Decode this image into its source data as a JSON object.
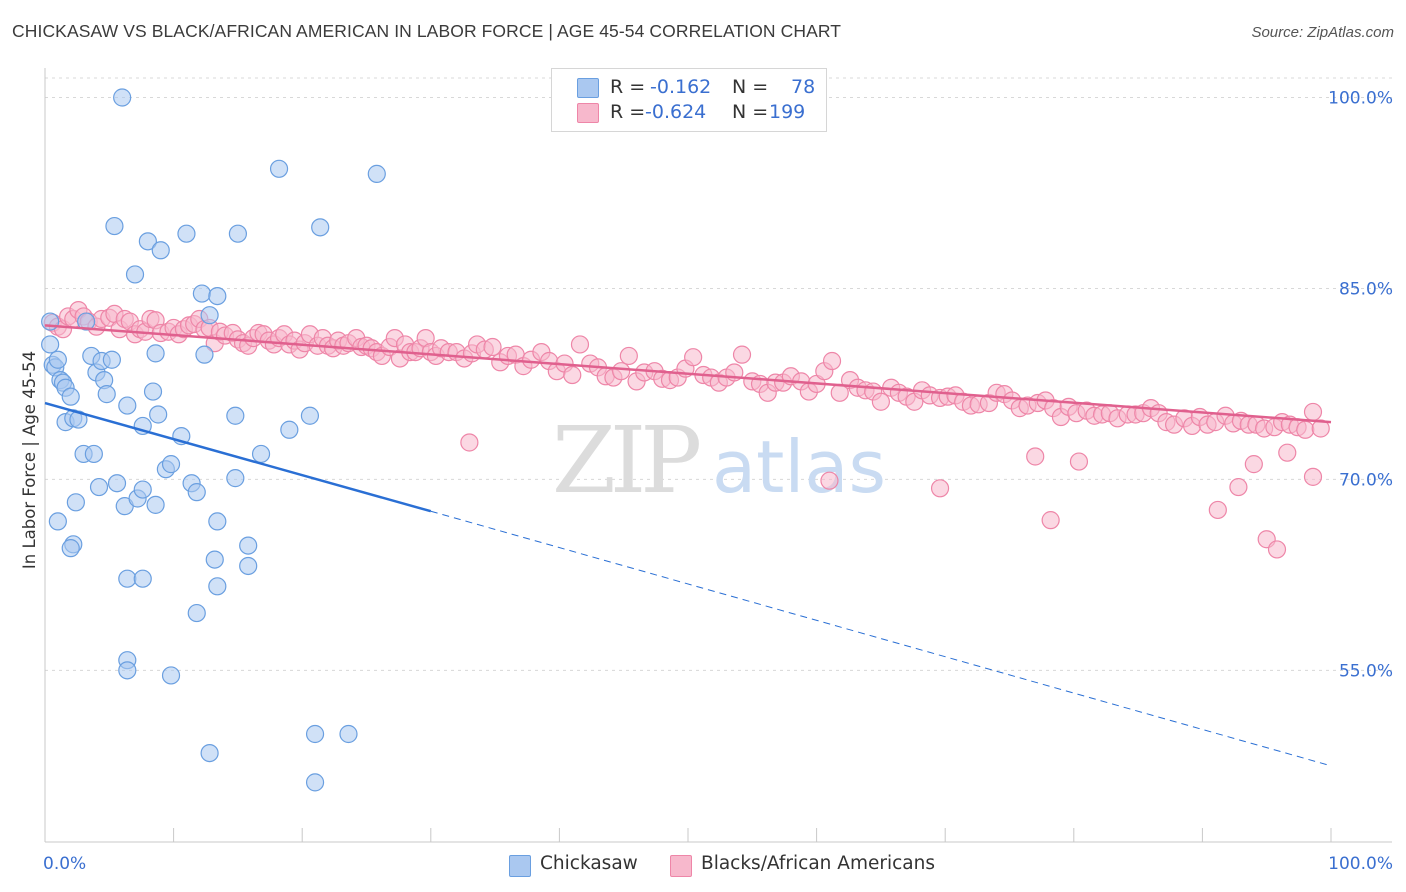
{
  "title": "CHICKASAW VS BLACK/AFRICAN AMERICAN IN LABOR FORCE | AGE 45-54 CORRELATION CHART",
  "source": "Source: ZipAtlas.com",
  "watermark": {
    "zip": "ZIP",
    "atlas": "atlas"
  },
  "legend_top": [
    {
      "r_label": "R =",
      "r_value": "-0.162",
      "n_label": "N =",
      "n_value": "78"
    },
    {
      "r_label": "R =",
      "r_value": "-0.624",
      "n_label": "N =",
      "n_value": "199"
    }
  ],
  "colors": {
    "blue_fill": "#aac8f0",
    "blue_stroke": "#6a9fe0",
    "blue_line": "#2a6fd4",
    "pink_fill": "#f7b8cc",
    "pink_stroke": "#ee86a8",
    "pink_line": "#e0608e",
    "value_text": "#3a6fd0",
    "grid": "#d8d8d8"
  },
  "chart_data": {
    "type": "scatter",
    "title": "CHICKASAW VS BLACK/AFRICAN AMERICAN IN LABOR FORCE | AGE 45-54 CORRELATION CHART",
    "xlabel": "",
    "ylabel": "In Labor Force | Age 45-54",
    "xlim": [
      0,
      100
    ],
    "ylim": [
      43,
      101
    ],
    "x_tick_labels": [
      "0.0%",
      "100.0%"
    ],
    "y_tick_labels": [
      "100.0%",
      "85.0%",
      "70.0%",
      "55.0%"
    ],
    "y_ticks": [
      100,
      85,
      70,
      55
    ],
    "grid": true,
    "legend_position": "top-center",
    "series": [
      {
        "name": "Chickasaw",
        "color": "blue",
        "r": -0.162,
        "n": 78,
        "trend": {
          "x": [
            0,
            30
          ],
          "y": [
            76.0,
            67.5
          ],
          "dashed_to": [
            100,
            47.5
          ]
        },
        "points": [
          [
            0.4,
            82.4
          ],
          [
            0.4,
            80.6
          ],
          [
            0.6,
            79.0
          ],
          [
            0.8,
            78.8
          ],
          [
            1.0,
            79.4
          ],
          [
            1.2,
            77.8
          ],
          [
            1.4,
            77.6
          ],
          [
            1.6,
            77.2
          ],
          [
            2.0,
            76.5
          ],
          [
            1.6,
            74.5
          ],
          [
            2.2,
            74.8
          ],
          [
            2.6,
            74.7
          ],
          [
            3.2,
            82.4
          ],
          [
            3.6,
            79.7
          ],
          [
            4.0,
            78.4
          ],
          [
            4.4,
            79.3
          ],
          [
            5.2,
            79.4
          ],
          [
            4.6,
            77.8
          ],
          [
            4.8,
            76.7
          ],
          [
            6.4,
            75.8
          ],
          [
            8.4,
            76.9
          ],
          [
            7.6,
            74.2
          ],
          [
            8.8,
            75.1
          ],
          [
            3.0,
            72.0
          ],
          [
            3.8,
            72.0
          ],
          [
            2.4,
            68.2
          ],
          [
            1.0,
            66.7
          ],
          [
            2.2,
            64.9
          ],
          [
            2.0,
            64.6
          ],
          [
            4.2,
            69.4
          ],
          [
            5.6,
            69.7
          ],
          [
            6.2,
            67.9
          ],
          [
            7.2,
            68.5
          ],
          [
            7.6,
            69.2
          ],
          [
            8.6,
            68.0
          ],
          [
            9.4,
            70.8
          ],
          [
            9.8,
            71.2
          ],
          [
            10.6,
            73.4
          ],
          [
            11.4,
            69.7
          ],
          [
            11.8,
            69.0
          ],
          [
            12.4,
            79.8
          ],
          [
            12.2,
            84.6
          ],
          [
            12.8,
            82.9
          ],
          [
            13.4,
            84.4
          ],
          [
            8.6,
            79.9
          ],
          [
            5.4,
            89.9
          ],
          [
            6.0,
            100.0
          ],
          [
            7.0,
            86.1
          ],
          [
            8.0,
            88.7
          ],
          [
            9.0,
            88.0
          ],
          [
            11.0,
            89.3
          ],
          [
            15.0,
            89.3
          ],
          [
            18.2,
            94.4
          ],
          [
            21.4,
            89.8
          ],
          [
            25.8,
            94.0
          ],
          [
            14.8,
            75.0
          ],
          [
            19.0,
            73.9
          ],
          [
            20.6,
            75.0
          ],
          [
            16.8,
            72.0
          ],
          [
            14.8,
            70.1
          ],
          [
            13.4,
            66.7
          ],
          [
            13.2,
            63.7
          ],
          [
            13.4,
            61.6
          ],
          [
            15.8,
            64.8
          ],
          [
            15.8,
            63.2
          ],
          [
            11.8,
            59.5
          ],
          [
            6.4,
            62.2
          ],
          [
            7.6,
            62.2
          ],
          [
            6.4,
            55.8
          ],
          [
            6.4,
            55.0
          ],
          [
            9.8,
            54.6
          ],
          [
            12.8,
            48.5
          ],
          [
            21.0,
            50.0
          ],
          [
            23.6,
            50.0
          ],
          [
            21.0,
            46.2
          ]
        ]
      },
      {
        "name": "Blacks/African Americans",
        "color": "pink",
        "r": -0.624,
        "n": 199,
        "trend": {
          "x": [
            0,
            100
          ],
          "y": [
            82.1,
            74.5
          ]
        },
        "points": [
          [
            0.6,
            82.3
          ],
          [
            1.0,
            82.0
          ],
          [
            1.4,
            81.8
          ],
          [
            1.8,
            82.8
          ],
          [
            2.2,
            82.6
          ],
          [
            2.6,
            83.3
          ],
          [
            3.0,
            82.8
          ],
          [
            3.4,
            82.4
          ],
          [
            4.0,
            82.0
          ],
          [
            4.4,
            82.6
          ],
          [
            5.0,
            82.7
          ],
          [
            5.4,
            83.0
          ],
          [
            5.8,
            81.8
          ],
          [
            6.2,
            82.6
          ],
          [
            6.6,
            82.4
          ],
          [
            7.0,
            81.4
          ],
          [
            7.4,
            81.8
          ],
          [
            7.8,
            81.6
          ],
          [
            8.2,
            82.6
          ],
          [
            8.6,
            82.5
          ],
          [
            9.0,
            81.5
          ],
          [
            9.6,
            81.6
          ],
          [
            10.0,
            81.9
          ],
          [
            10.4,
            81.4
          ],
          [
            10.8,
            81.8
          ],
          [
            11.2,
            82.1
          ],
          [
            11.6,
            82.2
          ],
          [
            12.0,
            82.6
          ],
          [
            12.4,
            81.8
          ],
          [
            12.8,
            81.9
          ],
          [
            13.2,
            80.7
          ],
          [
            13.6,
            81.6
          ],
          [
            14.0,
            81.3
          ],
          [
            14.6,
            81.5
          ],
          [
            15.0,
            81.0
          ],
          [
            15.4,
            80.7
          ],
          [
            15.8,
            80.5
          ],
          [
            16.2,
            81.1
          ],
          [
            16.6,
            81.5
          ],
          [
            17.0,
            81.4
          ],
          [
            17.4,
            80.9
          ],
          [
            17.8,
            80.6
          ],
          [
            18.2,
            81.1
          ],
          [
            18.6,
            81.4
          ],
          [
            19.0,
            80.6
          ],
          [
            19.4,
            80.9
          ],
          [
            19.8,
            80.2
          ],
          [
            20.2,
            80.7
          ],
          [
            20.6,
            81.4
          ],
          [
            21.2,
            80.5
          ],
          [
            21.6,
            81.1
          ],
          [
            22.0,
            80.5
          ],
          [
            22.4,
            80.3
          ],
          [
            22.8,
            80.9
          ],
          [
            23.2,
            80.5
          ],
          [
            23.6,
            80.7
          ],
          [
            24.2,
            81.1
          ],
          [
            24.6,
            80.4
          ],
          [
            25.0,
            80.5
          ],
          [
            25.4,
            80.3
          ],
          [
            25.8,
            80.0
          ],
          [
            26.2,
            79.7
          ],
          [
            26.8,
            80.4
          ],
          [
            27.2,
            81.1
          ],
          [
            27.6,
            79.5
          ],
          [
            28.0,
            80.6
          ],
          [
            28.4,
            80.0
          ],
          [
            28.8,
            80.0
          ],
          [
            29.2,
            80.3
          ],
          [
            29.6,
            81.1
          ],
          [
            30.0,
            80.0
          ],
          [
            30.4,
            79.7
          ],
          [
            30.8,
            80.3
          ],
          [
            31.4,
            80.0
          ],
          [
            32.0,
            80.0
          ],
          [
            32.6,
            79.5
          ],
          [
            33.2,
            79.9
          ],
          [
            33.6,
            80.6
          ],
          [
            34.2,
            80.2
          ],
          [
            34.8,
            80.4
          ],
          [
            35.4,
            79.2
          ],
          [
            36.0,
            79.7
          ],
          [
            36.6,
            79.8
          ],
          [
            37.2,
            78.9
          ],
          [
            37.8,
            79.4
          ],
          [
            38.6,
            80.0
          ],
          [
            39.2,
            79.3
          ],
          [
            39.8,
            78.5
          ],
          [
            40.4,
            79.1
          ],
          [
            41.0,
            78.2
          ],
          [
            41.6,
            80.6
          ],
          [
            42.4,
            79.1
          ],
          [
            43.0,
            78.8
          ],
          [
            43.6,
            78.1
          ],
          [
            44.2,
            78.0
          ],
          [
            44.8,
            78.5
          ],
          [
            45.4,
            79.7
          ],
          [
            46.0,
            77.7
          ],
          [
            46.6,
            78.4
          ],
          [
            47.4,
            78.5
          ],
          [
            48.0,
            77.9
          ],
          [
            48.6,
            77.8
          ],
          [
            49.2,
            78.0
          ],
          [
            49.8,
            78.7
          ],
          [
            50.4,
            79.6
          ],
          [
            51.2,
            78.2
          ],
          [
            51.8,
            78.0
          ],
          [
            52.4,
            77.6
          ],
          [
            53.0,
            78.0
          ],
          [
            53.6,
            78.4
          ],
          [
            54.2,
            79.8
          ],
          [
            55.0,
            77.7
          ],
          [
            55.6,
            77.5
          ],
          [
            56.2,
            76.8
          ],
          [
            56.8,
            77.6
          ],
          [
            57.4,
            77.6
          ],
          [
            58.0,
            78.1
          ],
          [
            58.8,
            77.7
          ],
          [
            59.4,
            76.9
          ],
          [
            60.0,
            77.5
          ],
          [
            60.6,
            78.5
          ],
          [
            61.2,
            79.3
          ],
          [
            61.8,
            76.8
          ],
          [
            62.6,
            77.8
          ],
          [
            63.2,
            77.2
          ],
          [
            63.8,
            77.0
          ],
          [
            64.4,
            76.9
          ],
          [
            65.0,
            76.1
          ],
          [
            65.8,
            77.2
          ],
          [
            66.4,
            76.8
          ],
          [
            67.0,
            76.5
          ],
          [
            67.6,
            76.1
          ],
          [
            68.2,
            77.0
          ],
          [
            68.8,
            76.6
          ],
          [
            69.6,
            76.4
          ],
          [
            70.2,
            76.5
          ],
          [
            70.8,
            76.6
          ],
          [
            71.4,
            76.1
          ],
          [
            72.0,
            75.8
          ],
          [
            72.6,
            75.9
          ],
          [
            73.4,
            76.0
          ],
          [
            74.0,
            76.8
          ],
          [
            74.6,
            76.7
          ],
          [
            75.2,
            76.2
          ],
          [
            75.8,
            75.6
          ],
          [
            76.4,
            75.8
          ],
          [
            77.2,
            76.0
          ],
          [
            77.8,
            76.2
          ],
          [
            78.4,
            75.6
          ],
          [
            79.0,
            74.9
          ],
          [
            79.6,
            75.7
          ],
          [
            80.2,
            75.2
          ],
          [
            81.0,
            75.4
          ],
          [
            81.6,
            75.0
          ],
          [
            82.2,
            75.1
          ],
          [
            82.8,
            75.2
          ],
          [
            83.4,
            74.8
          ],
          [
            84.2,
            75.1
          ],
          [
            84.8,
            75.1
          ],
          [
            85.4,
            75.2
          ],
          [
            86.0,
            75.6
          ],
          [
            86.6,
            75.2
          ],
          [
            87.2,
            74.5
          ],
          [
            87.8,
            74.3
          ],
          [
            88.6,
            74.8
          ],
          [
            89.2,
            74.2
          ],
          [
            89.8,
            74.9
          ],
          [
            90.4,
            74.3
          ],
          [
            91.0,
            74.5
          ],
          [
            91.8,
            75.0
          ],
          [
            92.4,
            74.4
          ],
          [
            93.0,
            74.6
          ],
          [
            93.6,
            74.3
          ],
          [
            94.2,
            74.3
          ],
          [
            94.8,
            74.0
          ],
          [
            95.6,
            74.1
          ],
          [
            96.2,
            74.5
          ],
          [
            96.8,
            74.3
          ],
          [
            97.4,
            74.1
          ],
          [
            98.0,
            73.9
          ],
          [
            98.6,
            75.3
          ],
          [
            99.2,
            74.0
          ],
          [
            95.0,
            65.3
          ],
          [
            95.8,
            64.5
          ],
          [
            78.2,
            66.8
          ],
          [
            61.0,
            69.9
          ],
          [
            69.6,
            69.3
          ],
          [
            91.2,
            67.6
          ],
          [
            92.8,
            69.4
          ],
          [
            94.0,
            71.2
          ],
          [
            96.6,
            72.1
          ],
          [
            98.6,
            70.2
          ],
          [
            33.0,
            72.9
          ],
          [
            77.0,
            71.8
          ],
          [
            80.4,
            71.4
          ]
        ]
      }
    ]
  },
  "axis": {
    "x_left": "0.0%",
    "x_right": "100.0%",
    "y_title": "In Labor Force | Age 45-54"
  },
  "bottom_legend": [
    {
      "label": "Chickasaw"
    },
    {
      "label": "Blacks/African Americans"
    }
  ]
}
